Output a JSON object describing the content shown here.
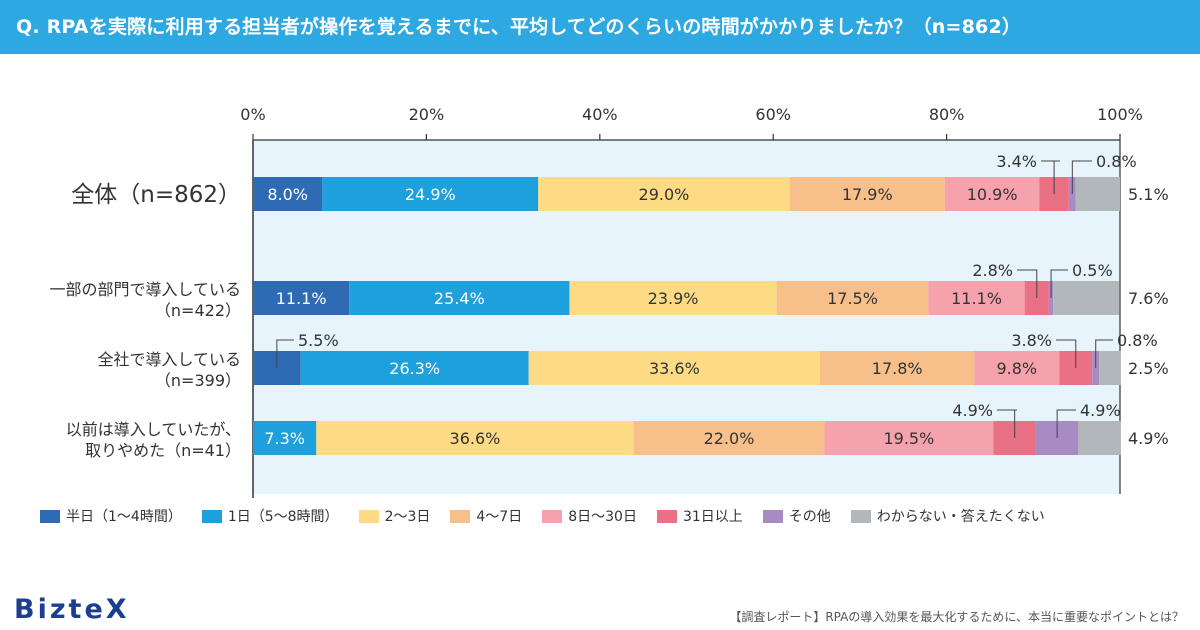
{
  "header": {
    "question": "Q.  RPAを実際に利用する担当者が操作を覚えるまでに、平均してどのくらいの時間がかかりましたか？（n=862）"
  },
  "colors": {
    "header_bg": "#2ea8e0",
    "plot_bg": "#e8f4fb",
    "series": [
      "#2f6bb5",
      "#1ea0dd",
      "#fddb85",
      "#f7c08a",
      "#f5a2ad",
      "#ea7085",
      "#a98bc4",
      "#b2b7bb"
    ]
  },
  "chart_data": {
    "type": "bar",
    "orientation": "horizontal",
    "stacked": true,
    "title": "RPAを実際に利用する担当者が操作を覚えるまでに、平均してどのくらいの時間がかかりましたか？（n=862）",
    "xlim": [
      0,
      100
    ],
    "x_ticks": [
      "0%",
      "20%",
      "40%",
      "60%",
      "80%",
      "100%"
    ],
    "legend_position": "bottom",
    "categories": [
      {
        "label_lines": [
          "全体（n=862）"
        ]
      },
      {
        "label_lines": [
          "一部の部門で導入している",
          "（n=422）"
        ]
      },
      {
        "label_lines": [
          "全社で導入している",
          "（n=399）"
        ]
      },
      {
        "label_lines": [
          "以前は導入していたが、",
          "取りやめた（n=41）"
        ]
      }
    ],
    "series": [
      {
        "name": "半日（1～4時間）",
        "values": [
          8.0,
          11.1,
          5.5,
          0.0
        ],
        "labels": [
          "8.0%",
          "11.1%",
          "5.5%",
          ""
        ]
      },
      {
        "name": "1日（5～8時間）",
        "values": [
          24.9,
          25.4,
          26.3,
          7.3
        ],
        "labels": [
          "24.9%",
          "25.4%",
          "26.3%",
          "7.3%"
        ]
      },
      {
        "name": "2～3日",
        "values": [
          29.0,
          23.9,
          33.6,
          36.6
        ],
        "labels": [
          "29.0%",
          "23.9%",
          "33.6%",
          "36.6%"
        ]
      },
      {
        "name": "4～7日",
        "values": [
          17.9,
          17.5,
          17.8,
          22.0
        ],
        "labels": [
          "17.9%",
          "17.5%",
          "17.8%",
          "22.0%"
        ]
      },
      {
        "name": "8日～30日",
        "values": [
          10.9,
          11.1,
          9.8,
          19.5
        ],
        "labels": [
          "10.9%",
          "11.1%",
          "9.8%",
          "19.5%"
        ]
      },
      {
        "name": "31日以上",
        "values": [
          3.4,
          2.8,
          3.8,
          4.9
        ],
        "labels": [
          "3.4%",
          "2.8%",
          "3.8%",
          "4.9%"
        ]
      },
      {
        "name": "その他",
        "values": [
          0.8,
          0.5,
          0.8,
          4.9
        ],
        "labels": [
          "0.8%",
          "0.5%",
          "0.8%",
          "4.9%"
        ]
      },
      {
        "name": "わからない・答えたくない",
        "values": [
          5.1,
          7.6,
          2.5,
          4.9
        ],
        "labels": [
          "5.1%",
          "7.6%",
          "2.5%",
          "4.9%"
        ]
      }
    ]
  },
  "footer": {
    "logo": "BizteX",
    "footnote": "【調査レポート】RPAの導入効果を最大化するために、本当に重要なポイントとは？"
  }
}
